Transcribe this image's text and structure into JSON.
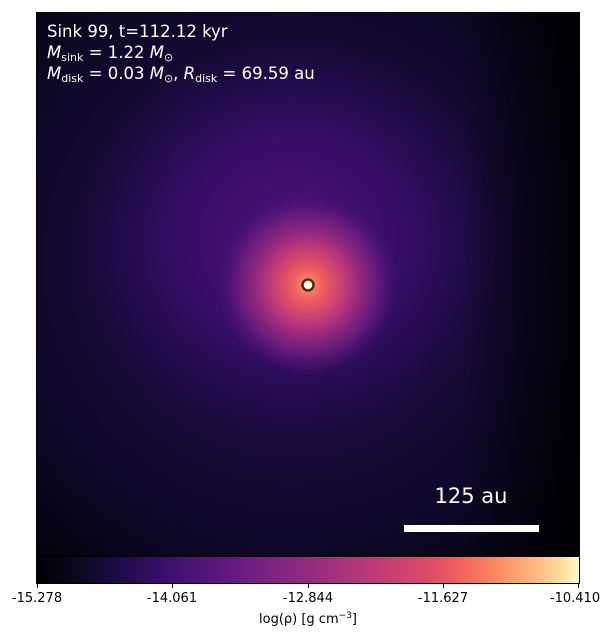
{
  "annotation": {
    "line1": "Sink 99, t=112.12 kyr",
    "m_sink_symbol": "M",
    "m_sink_sub": "sink",
    "m_sink_value": " = 1.22 ",
    "m_sun_symbol": "M",
    "m_sun_sub": "⊙",
    "m_disk_symbol": "M",
    "m_disk_sub": "disk",
    "m_disk_value": " = 0.03 ",
    "separator": ", ",
    "r_disk_symbol": "R",
    "r_disk_sub": "disk",
    "r_disk_value": " = 69.59 au"
  },
  "scalebar": {
    "label": "125 au"
  },
  "colorbar": {
    "colormap": "plasma",
    "ticks": [
      "-15.278",
      "-14.061",
      "-12.844",
      "-11.627",
      "-10.410"
    ],
    "label_main": "log(ρ) [g cm",
    "label_exp": "−3",
    "label_end": "]"
  },
  "colors": {
    "background_dark": "#000004",
    "cloud": "#3b0f70",
    "core": "#f1605d",
    "sink_marker_fill": "#ffffff",
    "sink_marker_edge": "#5a2a05"
  }
}
